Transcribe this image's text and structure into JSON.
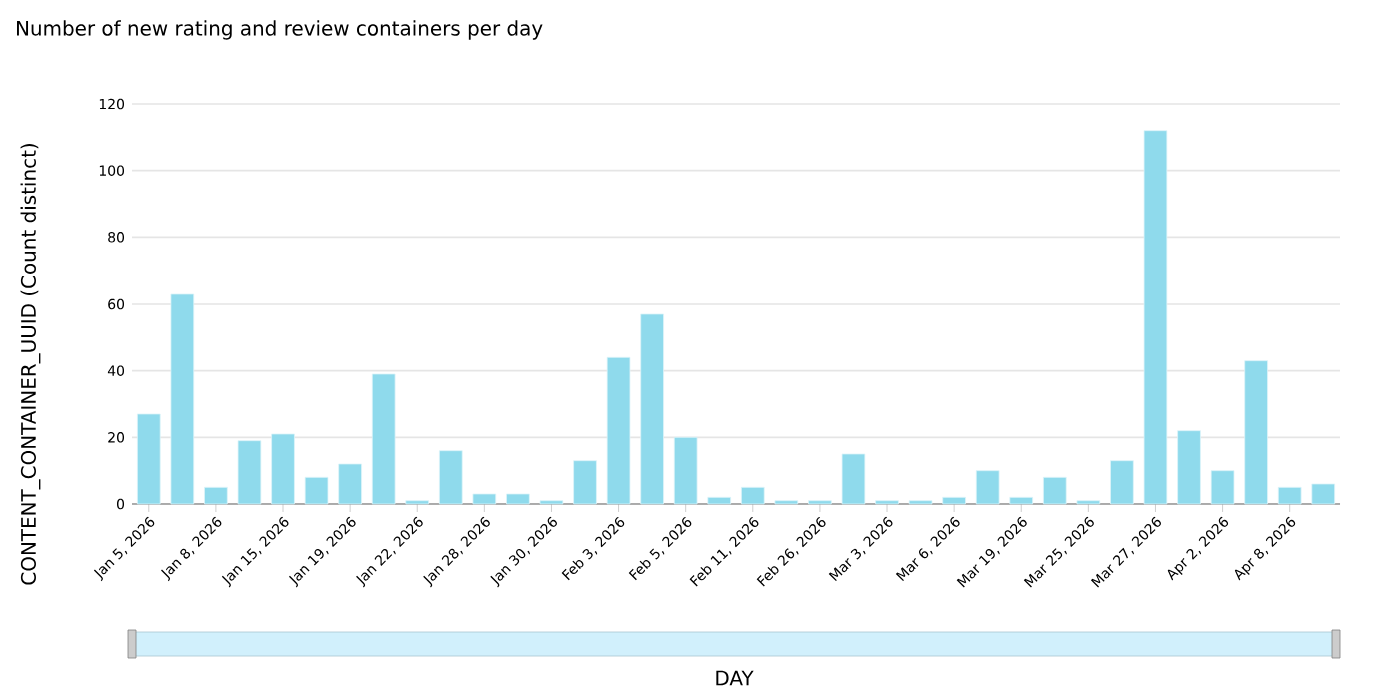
{
  "chart_data": {
    "type": "bar",
    "title": "Number of new rating and review containers per day",
    "xlabel": "DAY",
    "ylabel": "CONTENT_CONTAINER_UUID (Count distinct)",
    "categories": [
      "Jan 5, 2026",
      null,
      "Jan 8, 2026",
      null,
      "Jan 15, 2026",
      null,
      "Jan 19, 2026",
      null,
      "Jan 22, 2026",
      null,
      "Jan 28, 2026",
      null,
      "Jan 30, 2026",
      null,
      "Feb 3, 2026",
      null,
      "Feb 5, 2026",
      null,
      "Feb 11, 2026",
      null,
      "Feb 26, 2026",
      null,
      "Mar 3, 2026",
      null,
      "Mar 6, 2026",
      null,
      "Mar 19, 2026",
      null,
      "Mar 25, 2026",
      null,
      "Mar 27, 2026",
      null,
      "Apr 2, 2026",
      null,
      "Apr 8, 2026",
      null
    ],
    "values": [
      27,
      63,
      5,
      19,
      21,
      8,
      12,
      39,
      1,
      16,
      3,
      3,
      1,
      13,
      44,
      57,
      20,
      2,
      5,
      1,
      1,
      15,
      1,
      1,
      2,
      10,
      2,
      8,
      1,
      13,
      112,
      22,
      10,
      43,
      5,
      6
    ],
    "color": "#8fdaec",
    "ylim": [
      0,
      120
    ],
    "yticks": [
      0,
      20,
      40,
      60,
      80,
      100,
      120
    ],
    "grid": "y"
  }
}
